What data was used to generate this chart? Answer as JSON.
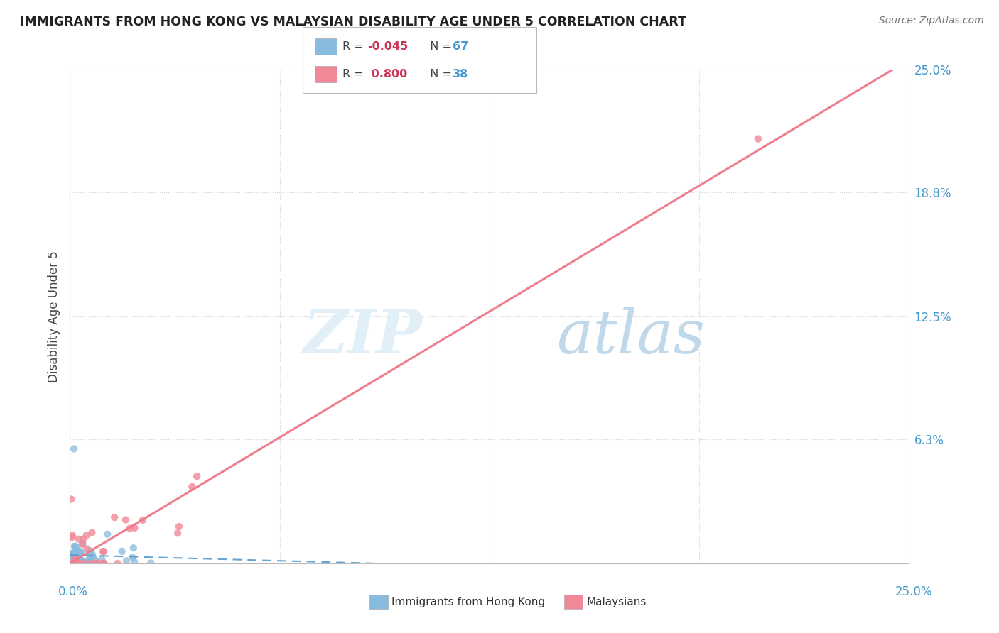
{
  "title": "IMMIGRANTS FROM HONG KONG VS MALAYSIAN DISABILITY AGE UNDER 5 CORRELATION CHART",
  "source": "Source: ZipAtlas.com",
  "ylabel": "Disability Age Under 5",
  "legend_label1": "Immigrants from Hong Kong",
  "legend_label2": "Malaysians",
  "blue_scatter_color": "#88bbdd",
  "pink_scatter_color": "#f08898",
  "blue_line_color": "#5599cc",
  "pink_line_color": "#ee7788",
  "watermark_zip_color": "#ddeef8",
  "watermark_atlas_color": "#b8d4e8",
  "background_color": "#ffffff",
  "grid_color": "#cccccc",
  "ytick_color": "#4499cc",
  "title_color": "#222222",
  "source_color": "#777777",
  "legend_r_color": "#cc3355",
  "legend_n_color": "#4499cc",
  "blue_r": -0.045,
  "blue_n": 67,
  "pink_r": 0.8,
  "pink_n": 38
}
